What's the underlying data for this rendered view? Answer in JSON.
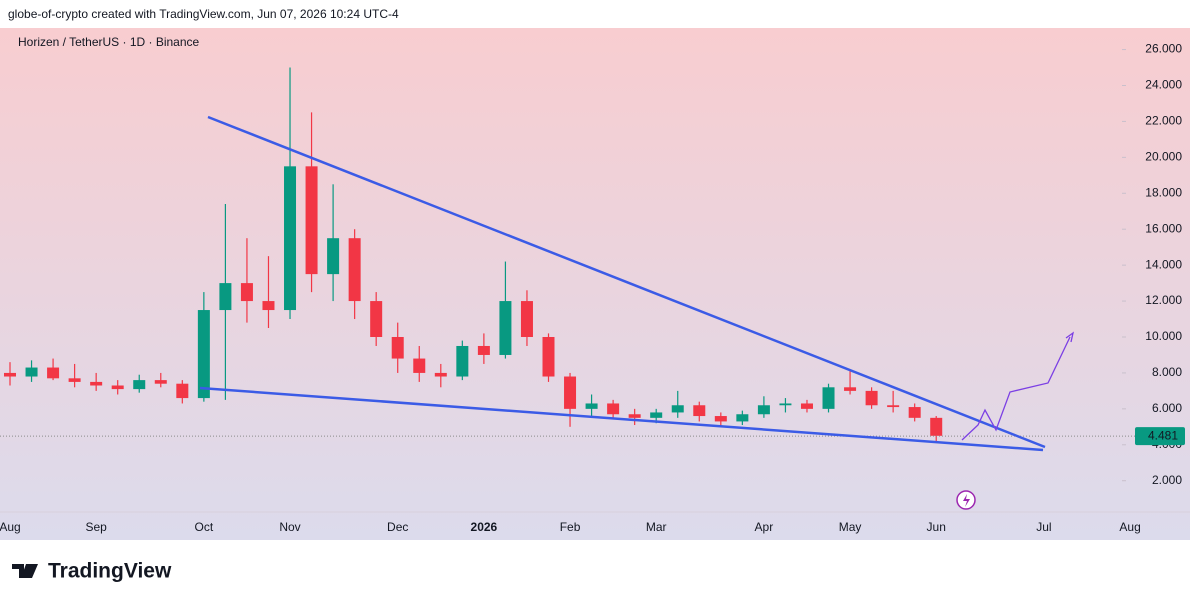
{
  "chart_data": {
    "type": "candlestick",
    "caption": "globe-of-crypto created with TradingView.com, Jun 07, 2026 10:24 UTC-4",
    "title": "Horizen / TetherUS · 1D · Binance",
    "brand": "TradingView",
    "categories": [
      "Aug",
      null,
      null,
      null,
      "Sep",
      null,
      null,
      null,
      null,
      "Oct",
      null,
      null,
      null,
      "Nov",
      null,
      null,
      null,
      null,
      "Dec",
      null,
      null,
      null,
      "2026",
      null,
      null,
      null,
      "Feb",
      null,
      null,
      null,
      "Mar",
      null,
      null,
      null,
      null,
      "Apr",
      null,
      null,
      null,
      "May",
      null,
      null,
      null,
      "Jun",
      null,
      null,
      null,
      null,
      "Jul",
      null,
      null,
      null,
      "Aug"
    ],
    "open": [
      8.0,
      7.8,
      8.3,
      7.7,
      7.5,
      7.3,
      7.1,
      7.6,
      7.4,
      6.6,
      11.5,
      13.0,
      12.0,
      11.5,
      19.5,
      13.5,
      15.5,
      12.0,
      10.0,
      8.8,
      8.0,
      7.8,
      9.5,
      9.0,
      12.0,
      10.0,
      7.8,
      6.0,
      6.3,
      5.7,
      5.5,
      5.8,
      6.2,
      5.6,
      5.3,
      5.7,
      6.2,
      6.3,
      6.0,
      7.2,
      7.0,
      6.2,
      6.1,
      5.5,
      null,
      null,
      null,
      null,
      null,
      null,
      null,
      null,
      null
    ],
    "high": [
      8.6,
      8.7,
      8.8,
      8.5,
      8.0,
      7.6,
      7.9,
      8.0,
      7.6,
      12.5,
      17.4,
      15.5,
      14.5,
      25.0,
      22.5,
      18.5,
      16.0,
      12.5,
      10.8,
      9.5,
      8.5,
      9.8,
      10.2,
      14.2,
      12.6,
      10.2,
      8.0,
      6.8,
      6.5,
      6.0,
      6.0,
      7.0,
      6.4,
      5.8,
      5.9,
      6.7,
      6.6,
      6.5,
      7.4,
      8.1,
      7.2,
      7.0,
      6.3,
      5.6,
      null,
      null,
      null,
      null,
      null,
      null,
      null,
      null,
      null
    ],
    "low": [
      7.3,
      7.5,
      7.6,
      7.2,
      7.0,
      6.8,
      6.9,
      7.2,
      6.3,
      6.4,
      6.5,
      10.8,
      10.5,
      11.0,
      12.5,
      12.0,
      11.0,
      9.5,
      8.0,
      7.5,
      7.2,
      7.6,
      8.5,
      8.8,
      9.5,
      7.5,
      5.0,
      5.6,
      5.5,
      5.1,
      5.2,
      5.5,
      5.3,
      5.0,
      5.1,
      5.5,
      5.8,
      5.8,
      5.8,
      6.8,
      6.0,
      5.8,
      5.3,
      4.1,
      null,
      null,
      null,
      null,
      null,
      null,
      null,
      null,
      null
    ],
    "close": [
      7.8,
      8.3,
      7.7,
      7.5,
      7.3,
      7.1,
      7.6,
      7.4,
      6.6,
      11.5,
      13.0,
      12.0,
      11.5,
      19.5,
      13.5,
      15.5,
      12.0,
      10.0,
      8.8,
      8.0,
      7.8,
      9.5,
      9.0,
      12.0,
      10.0,
      7.8,
      6.0,
      6.3,
      5.7,
      5.5,
      5.8,
      6.2,
      5.6,
      5.3,
      5.7,
      6.2,
      6.3,
      6.0,
      7.2,
      7.0,
      6.2,
      6.1,
      5.5,
      4.5,
      null,
      null,
      null,
      null,
      null,
      null,
      null,
      null,
      null
    ],
    "up_color": "#089981",
    "down_color": "#f23645",
    "last_price": 4.481,
    "ylim": [
      -1.3,
      27.2
    ],
    "yticks": [
      {
        "value": 2,
        "label": "2.000"
      },
      {
        "value": 4,
        "label": "4.000"
      },
      {
        "value": 6,
        "label": "6.000"
      },
      {
        "value": 8,
        "label": "8.000"
      },
      {
        "value": 10,
        "label": "10.000"
      },
      {
        "value": 12,
        "label": "12.000"
      },
      {
        "value": 14,
        "label": "14.000"
      },
      {
        "value": 16,
        "label": "16.000"
      },
      {
        "value": 18,
        "label": "18.000"
      },
      {
        "value": 20,
        "label": "20.000"
      },
      {
        "value": 22,
        "label": "22.000"
      },
      {
        "value": 24,
        "label": "24.000"
      },
      {
        "value": 26,
        "label": "26.000"
      }
    ]
  }
}
